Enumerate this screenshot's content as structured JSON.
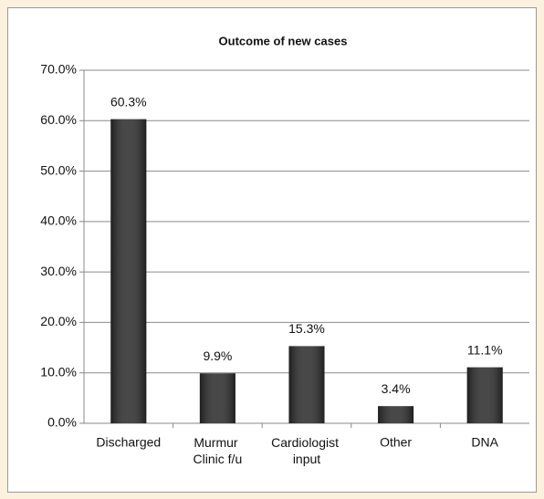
{
  "chart_data": {
    "type": "bar",
    "title": "Outcome of new cases",
    "categories": [
      "Discharged",
      "Murmur Clinic f/u",
      "Cardiologist input",
      "Other",
      "DNA"
    ],
    "values": [
      60.3,
      9.9,
      15.3,
      3.4,
      11.1
    ],
    "value_labels": [
      "60.3%",
      "9.9%",
      "15.3%",
      "3.4%",
      "11.1%"
    ],
    "color": "#2e2e2e",
    "ylim": [
      0,
      70
    ],
    "yticks": [
      {
        "value": 0,
        "label": "0.0%"
      },
      {
        "value": 10,
        "label": "10.0%"
      },
      {
        "value": 20,
        "label": "20.0%"
      },
      {
        "value": 30,
        "label": "30.0%"
      },
      {
        "value": 40,
        "label": "40.0%"
      },
      {
        "value": 50,
        "label": "50.0%"
      },
      {
        "value": 60,
        "label": "60.0%"
      },
      {
        "value": 70,
        "label": "70.0%"
      }
    ],
    "grid": true
  }
}
